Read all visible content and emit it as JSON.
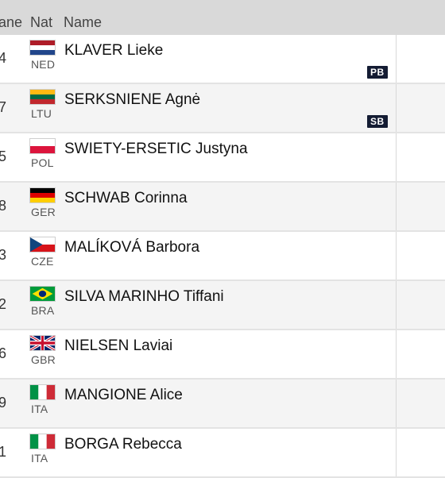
{
  "header": {
    "lane": "Lane",
    "nat": "Nat",
    "name": "Name"
  },
  "rows": [
    {
      "lane": "4",
      "nat": "NED",
      "name": "KLAVER Lieke",
      "flag": "flag-netherlands-icon",
      "badge": "PB"
    },
    {
      "lane": "7",
      "nat": "LTU",
      "name": "SERKSNIENE Agnė",
      "flag": "flag-lithuania-icon",
      "badge": "SB"
    },
    {
      "lane": "5",
      "nat": "POL",
      "name": "SWIETY-ERSETIC Justyna",
      "flag": "flag-poland-icon"
    },
    {
      "lane": "8",
      "nat": "GER",
      "name": "SCHWAB Corinna",
      "flag": "flag-germany-icon"
    },
    {
      "lane": "3",
      "nat": "CZE",
      "name": "MALÍKOVÁ Barbora",
      "flag": "flag-czechia-icon"
    },
    {
      "lane": "2",
      "nat": "BRA",
      "name": "SILVA MARINHO Tiffani",
      "flag": "flag-brazil-icon"
    },
    {
      "lane": "6",
      "nat": "GBR",
      "name": "NIELSEN Laviai",
      "flag": "flag-great-britain-icon"
    },
    {
      "lane": "9",
      "nat": "ITA",
      "name": "MANGIONE Alice",
      "flag": "flag-italy-icon"
    },
    {
      "lane": "1",
      "nat": "ITA",
      "name": "BORGA Rebecca",
      "flag": "flag-italy-icon"
    }
  ],
  "colors": {
    "header_bg": "#d9d9d9",
    "row_alt_bg": "#f4f4f4",
    "badge_bg": "#141c33"
  }
}
